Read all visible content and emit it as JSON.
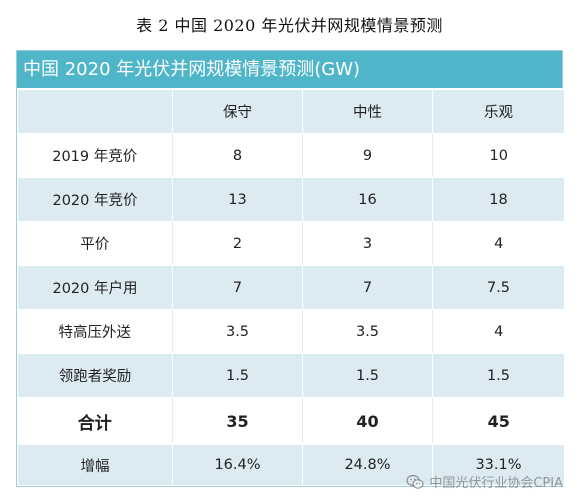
{
  "caption": "表 2 中国 2020 年光伏并网规模情景预测",
  "table": {
    "title": "中国 2020 年光伏并网规模情景预测(GW)",
    "header": [
      "",
      "保守",
      "中性",
      "乐观"
    ],
    "rows": [
      {
        "label": "2019 年竞价",
        "values": [
          "8",
          "9",
          "10"
        ]
      },
      {
        "label": "2020 年竞价",
        "values": [
          "13",
          "16",
          "18"
        ]
      },
      {
        "label": "平价",
        "values": [
          "2",
          "3",
          "4"
        ]
      },
      {
        "label": "2020 年户用",
        "values": [
          "7",
          "7",
          "7.5"
        ]
      },
      {
        "label": "特高压外送",
        "values": [
          "3.5",
          "3.5",
          "4"
        ]
      },
      {
        "label": "领跑者奖励",
        "values": [
          "1.5",
          "1.5",
          "1.5"
        ]
      }
    ],
    "total": {
      "label": "合计",
      "values": [
        "35",
        "40",
        "45"
      ]
    },
    "growth": {
      "label": "增幅",
      "values": [
        "16.4%",
        "24.8%",
        "33.1%"
      ]
    }
  },
  "watermark": {
    "icon": "wechat-icon",
    "text": "中国光伏行业协会CPIA"
  },
  "colors": {
    "title_bar": "#4fb6c9",
    "band": "#dcebf1"
  }
}
